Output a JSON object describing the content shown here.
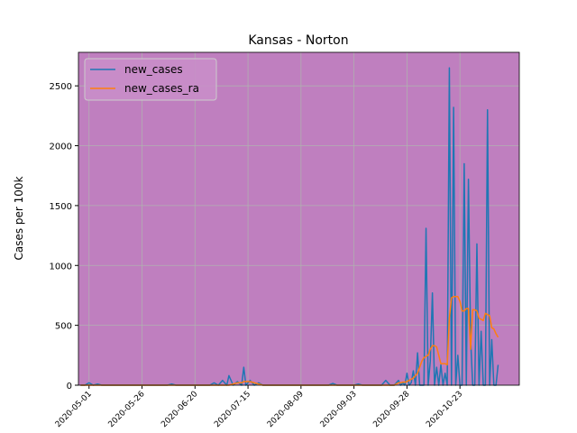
{
  "chart_data": {
    "type": "line",
    "title": "Kansas - Norton",
    "ylabel": "Cases per 100k",
    "x": [
      "2020-04-27",
      "2020-04-29",
      "2020-05-01",
      "2020-05-03",
      "2020-05-05",
      "2020-05-07",
      "2020-06-07",
      "2020-06-09",
      "2020-06-11",
      "2020-06-27",
      "2020-06-29",
      "2020-07-01",
      "2020-07-03",
      "2020-07-05",
      "2020-07-06",
      "2020-07-08",
      "2020-07-10",
      "2020-07-12",
      "2020-07-13",
      "2020-07-14",
      "2020-07-16",
      "2020-07-18",
      "2020-07-20",
      "2020-07-22",
      "2020-08-22",
      "2020-08-24",
      "2020-08-26",
      "2020-09-03",
      "2020-09-05",
      "2020-09-07",
      "2020-09-16",
      "2020-09-18",
      "2020-09-20",
      "2020-09-22",
      "2020-09-24",
      "2020-09-25",
      "2020-09-26",
      "2020-09-27",
      "2020-09-28",
      "2020-09-29",
      "2020-09-30",
      "2020-10-01",
      "2020-10-02",
      "2020-10-03",
      "2020-10-04",
      "2020-10-05",
      "2020-10-06",
      "2020-10-07",
      "2020-10-08",
      "2020-10-09",
      "2020-10-10",
      "2020-10-11",
      "2020-10-12",
      "2020-10-13",
      "2020-10-14",
      "2020-10-15",
      "2020-10-16",
      "2020-10-17",
      "2020-10-18",
      "2020-10-19",
      "2020-10-20",
      "2020-10-21",
      "2020-10-22",
      "2020-10-23",
      "2020-10-24",
      "2020-10-25",
      "2020-10-26",
      "2020-10-27",
      "2020-10-28",
      "2020-10-29",
      "2020-10-30",
      "2020-10-31",
      "2020-11-01",
      "2020-11-02",
      "2020-11-03",
      "2020-11-04",
      "2020-11-05",
      "2020-11-06",
      "2020-11-07",
      "2020-11-08",
      "2020-11-09",
      "2020-11-10"
    ],
    "series": [
      {
        "name": "new_cases",
        "color": "#1f77b4",
        "values": [
          0,
          0,
          20,
          0,
          10,
          0,
          0,
          10,
          0,
          0,
          20,
          0,
          40,
          0,
          80,
          0,
          30,
          0,
          150,
          0,
          40,
          0,
          20,
          0,
          0,
          15,
          0,
          0,
          10,
          0,
          0,
          40,
          0,
          0,
          40,
          0,
          20,
          0,
          100,
          0,
          20,
          120,
          0,
          270,
          0,
          0,
          0,
          1310,
          0,
          200,
          770,
          0,
          150,
          0,
          170,
          0,
          100,
          0,
          2650,
          0,
          2320,
          0,
          250,
          0,
          0,
          1850,
          0,
          1720,
          400,
          0,
          0,
          1180,
          0,
          450,
          0,
          0,
          2300,
          0,
          380,
          0,
          0,
          170
        ]
      },
      {
        "name": "new_cases_ra",
        "color": "#ff7f0e",
        "values": [
          0,
          0,
          0,
          0,
          0,
          0,
          0,
          0,
          0,
          0,
          0,
          0,
          0,
          0,
          0,
          10,
          20,
          20,
          30,
          30,
          30,
          20,
          10,
          0,
          0,
          0,
          0,
          0,
          0,
          0,
          0,
          0,
          0,
          0,
          20,
          20,
          25,
          25,
          30,
          40,
          50,
          60,
          80,
          100,
          150,
          200,
          230,
          240,
          250,
          300,
          330,
          330,
          320,
          250,
          180,
          180,
          180,
          170,
          560,
          730,
          740,
          740,
          740,
          700,
          620,
          620,
          640,
          640,
          300,
          630,
          630,
          620,
          560,
          550,
          540,
          600,
          590,
          580,
          480,
          470,
          430,
          400
        ]
      }
    ],
    "xlim": [
      "2020-04-26",
      "2020-11-20"
    ],
    "xticks": [
      "2020-05-01",
      "2020-05-26",
      "2020-06-20",
      "2020-07-15",
      "2020-08-09",
      "2020-09-03",
      "2020-09-28",
      "2020-10-23"
    ],
    "ylim": [
      0,
      2780
    ],
    "yticks": [
      0,
      500,
      1000,
      1500,
      2000,
      2500
    ],
    "grid": true,
    "legend": "upper left",
    "background": "#bf7fbf"
  }
}
